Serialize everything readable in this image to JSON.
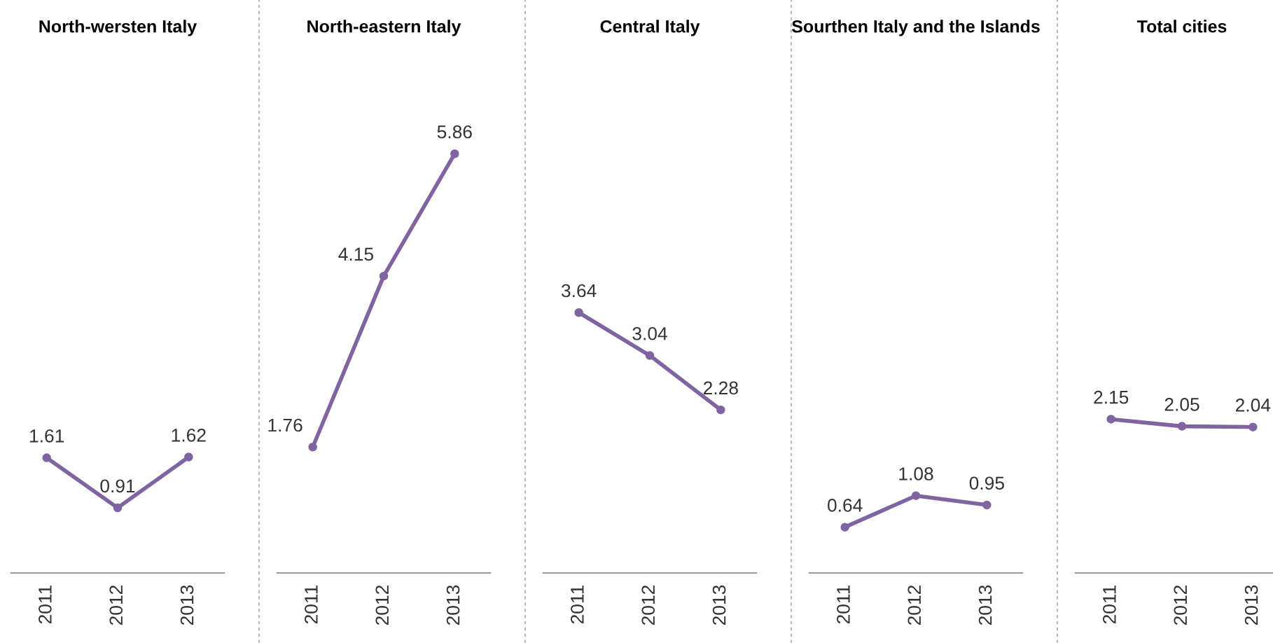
{
  "chart_data": [
    {
      "type": "line",
      "title": "North-wersten Italy",
      "categories": [
        "2011",
        "2012",
        "2013"
      ],
      "series": [
        {
          "color": "#8064a2",
          "values": [
            1.61,
            0.91,
            1.62
          ]
        }
      ],
      "tick_labels": "x",
      "data_labels": true,
      "marker": "circle",
      "grid": false,
      "legend": false
    },
    {
      "type": "line",
      "title": "North-eastern Italy",
      "categories": [
        "2011",
        "2012",
        "2013"
      ],
      "series": [
        {
          "color": "#8064a2",
          "values": [
            1.76,
            4.15,
            5.86
          ]
        }
      ],
      "tick_labels": "x",
      "data_labels": true,
      "marker": "circle",
      "grid": false,
      "legend": false
    },
    {
      "type": "line",
      "title": "Central Italy",
      "categories": [
        "2011",
        "2012",
        "2013"
      ],
      "series": [
        {
          "color": "#8064a2",
          "values": [
            3.64,
            3.04,
            2.28
          ]
        }
      ],
      "tick_labels": "x",
      "data_labels": true,
      "marker": "circle",
      "grid": false,
      "legend": false
    },
    {
      "type": "line",
      "title": "Sourthen Italy and the Islands",
      "categories": [
        "2011",
        "2012",
        "2013"
      ],
      "series": [
        {
          "color": "#8064a2",
          "values": [
            0.64,
            1.08,
            0.95
          ]
        }
      ],
      "tick_labels": "x",
      "data_labels": true,
      "marker": "circle",
      "grid": false,
      "legend": false
    },
    {
      "type": "line",
      "title": "Total cities",
      "categories": [
        "2011",
        "2012",
        "2013"
      ],
      "series": [
        {
          "color": "#8064a2",
          "values": [
            2.15,
            2.05,
            2.04
          ]
        }
      ],
      "tick_labels": "x",
      "data_labels": true,
      "marker": "circle",
      "grid": false,
      "legend": false
    }
  ]
}
